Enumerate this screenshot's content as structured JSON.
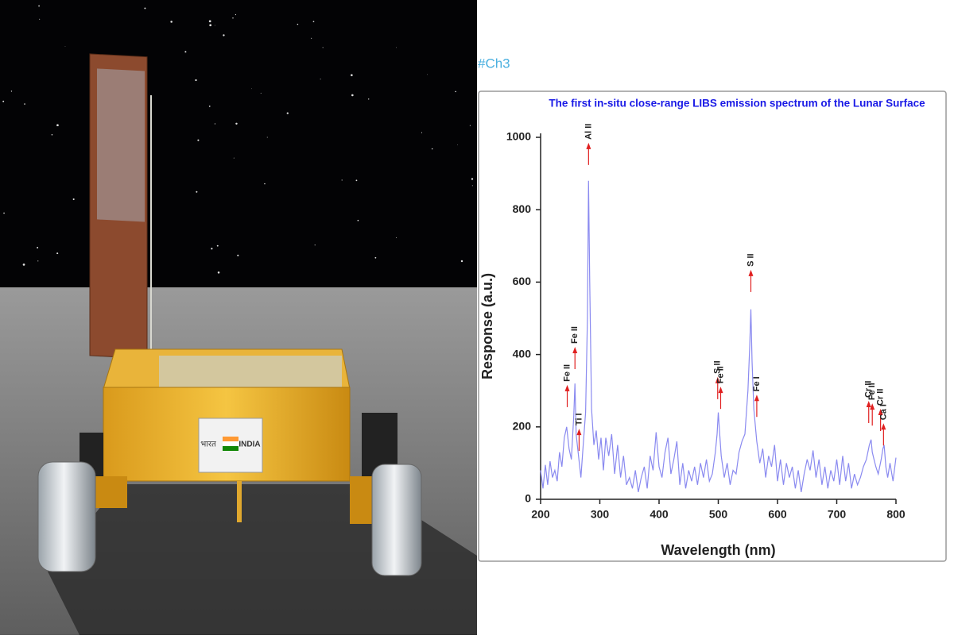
{
  "photo": {
    "badge_hindi": "भारत",
    "badge_english": "INDIA"
  },
  "caption": "#Ch3",
  "chart_data": {
    "type": "line",
    "title": "The first in-situ close-range LIBS emission spectrum of the Lunar Surface",
    "x_label": "Wavelength (nm)",
    "y_label": "Response (a.u.)",
    "xlim": [
      200,
      800
    ],
    "ylim": [
      0,
      1000
    ],
    "xticks": [
      200,
      300,
      400,
      500,
      600,
      700,
      800
    ],
    "yticks": [
      0,
      200,
      400,
      600,
      800,
      1000
    ],
    "series": [
      {
        "color": "#8a8af0",
        "x": [
          200,
          204,
          208,
          212,
          216,
          220,
          224,
          228,
          232,
          236,
          240,
          244,
          248,
          252,
          256,
          258,
          260,
          264,
          268,
          272,
          276,
          279,
          281,
          283,
          286,
          290,
          294,
          298,
          302,
          306,
          310,
          315,
          320,
          325,
          330,
          335,
          340,
          345,
          350,
          355,
          360,
          365,
          370,
          375,
          380,
          385,
          390,
          395,
          400,
          405,
          410,
          415,
          420,
          425,
          430,
          435,
          440,
          445,
          450,
          455,
          460,
          465,
          470,
          475,
          480,
          485,
          490,
          495,
          498,
          500,
          502,
          505,
          510,
          515,
          520,
          525,
          530,
          535,
          540,
          545,
          550,
          553,
          555,
          557,
          560,
          565,
          570,
          575,
          580,
          585,
          590,
          595,
          600,
          605,
          610,
          615,
          620,
          625,
          630,
          635,
          640,
          645,
          650,
          655,
          660,
          665,
          670,
          675,
          680,
          685,
          690,
          695,
          700,
          705,
          710,
          715,
          720,
          725,
          730,
          735,
          740,
          745,
          750,
          755,
          758,
          760,
          763,
          766,
          770,
          775,
          778,
          780,
          783,
          786,
          790,
          795,
          800
        ],
        "values": [
          80,
          30,
          95,
          40,
          105,
          60,
          80,
          50,
          130,
          90,
          170,
          200,
          140,
          110,
          230,
          320,
          180,
          120,
          60,
          150,
          240,
          500,
          880,
          600,
          250,
          150,
          190,
          110,
          170,
          80,
          170,
          120,
          180,
          70,
          150,
          60,
          120,
          40,
          60,
          30,
          80,
          20,
          60,
          90,
          30,
          120,
          80,
          185,
          90,
          60,
          130,
          170,
          70,
          110,
          160,
          40,
          100,
          30,
          80,
          50,
          90,
          40,
          100,
          60,
          110,
          50,
          70,
          130,
          180,
          240,
          190,
          120,
          60,
          100,
          40,
          80,
          70,
          130,
          160,
          180,
          300,
          420,
          525,
          380,
          250,
          160,
          100,
          140,
          60,
          120,
          90,
          150,
          50,
          110,
          40,
          100,
          60,
          90,
          30,
          80,
          20,
          70,
          110,
          80,
          135,
          60,
          110,
          40,
          90,
          30,
          80,
          50,
          110,
          40,
          120,
          50,
          100,
          30,
          70,
          40,
          60,
          90,
          110,
          150,
          165,
          130,
          110,
          90,
          70,
          110,
          140,
          150,
          90,
          60,
          100,
          50,
          115
        ]
      }
    ],
    "annotations": [
      {
        "text": "Fe II",
        "x": 245,
        "y": 316
      },
      {
        "text": "Fe II",
        "x": 258,
        "y": 421
      },
      {
        "text": "Ti I",
        "x": 265,
        "y": 195
      },
      {
        "text": "Al II",
        "x": 281,
        "y": 985
      },
      {
        "text": "S II",
        "x": 499,
        "y": 338
      },
      {
        "text": "Fe II",
        "x": 504,
        "y": 311
      },
      {
        "text": "S II",
        "x": 555,
        "y": 634
      },
      {
        "text": "Fe I",
        "x": 565,
        "y": 289
      },
      {
        "text": "Cr II",
        "x": 754,
        "y": 272
      },
      {
        "text": "Fe II",
        "x": 760,
        "y": 265
      },
      {
        "text": "Cr II",
        "x": 774,
        "y": 250
      },
      {
        "text": "Ca I",
        "x": 779,
        "y": 210
      }
    ]
  }
}
